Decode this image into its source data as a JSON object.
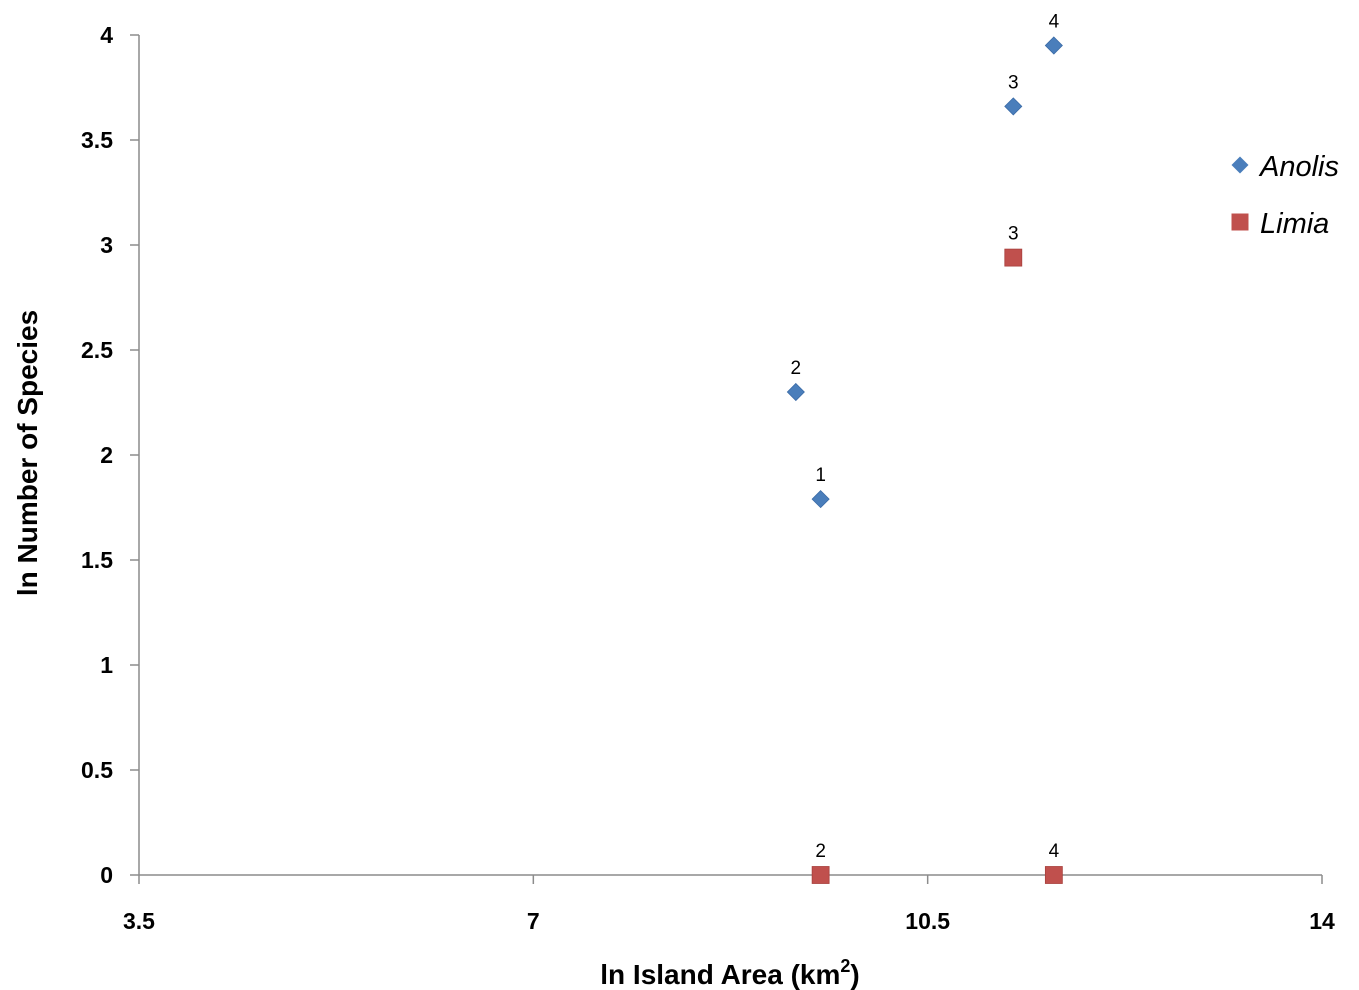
{
  "chart_data": {
    "type": "scatter",
    "xlabel": "ln Island Area (km",
    "xlabel_sup": "2",
    "xlabel_end": ")",
    "ylabel": "ln Number of Species",
    "xlim": [
      3.5,
      14
    ],
    "ylim": [
      0,
      4
    ],
    "x_ticks": [
      "3.5",
      "7",
      "10.5",
      "14"
    ],
    "x_tick_values": [
      3.5,
      7,
      10.5,
      14
    ],
    "y_ticks": [
      "0",
      "0.5",
      "1",
      "1.5",
      "2",
      "2.5",
      "3",
      "3.5",
      "4"
    ],
    "y_tick_values": [
      0,
      0.5,
      1,
      1.5,
      2,
      2.5,
      3,
      3.5,
      4
    ],
    "grid": false,
    "legend_position": "right",
    "series": [
      {
        "name": "Anolis",
        "marker": "diamond",
        "color": "#4a7ebb",
        "points": [
          {
            "x": 9.55,
            "y": 1.79,
            "label": "1"
          },
          {
            "x": 9.33,
            "y": 2.3,
            "label": "2"
          },
          {
            "x": 11.26,
            "y": 3.66,
            "label": "3"
          },
          {
            "x": 11.62,
            "y": 3.95,
            "label": "4"
          }
        ]
      },
      {
        "name": "Limia",
        "marker": "square",
        "color": "#c0504d",
        "points": [
          {
            "x": 9.55,
            "y": 0.0,
            "label": "2"
          },
          {
            "x": 11.26,
            "y": 2.94,
            "label": "3"
          },
          {
            "x": 11.62,
            "y": 0.0,
            "label": "4"
          }
        ]
      }
    ]
  }
}
